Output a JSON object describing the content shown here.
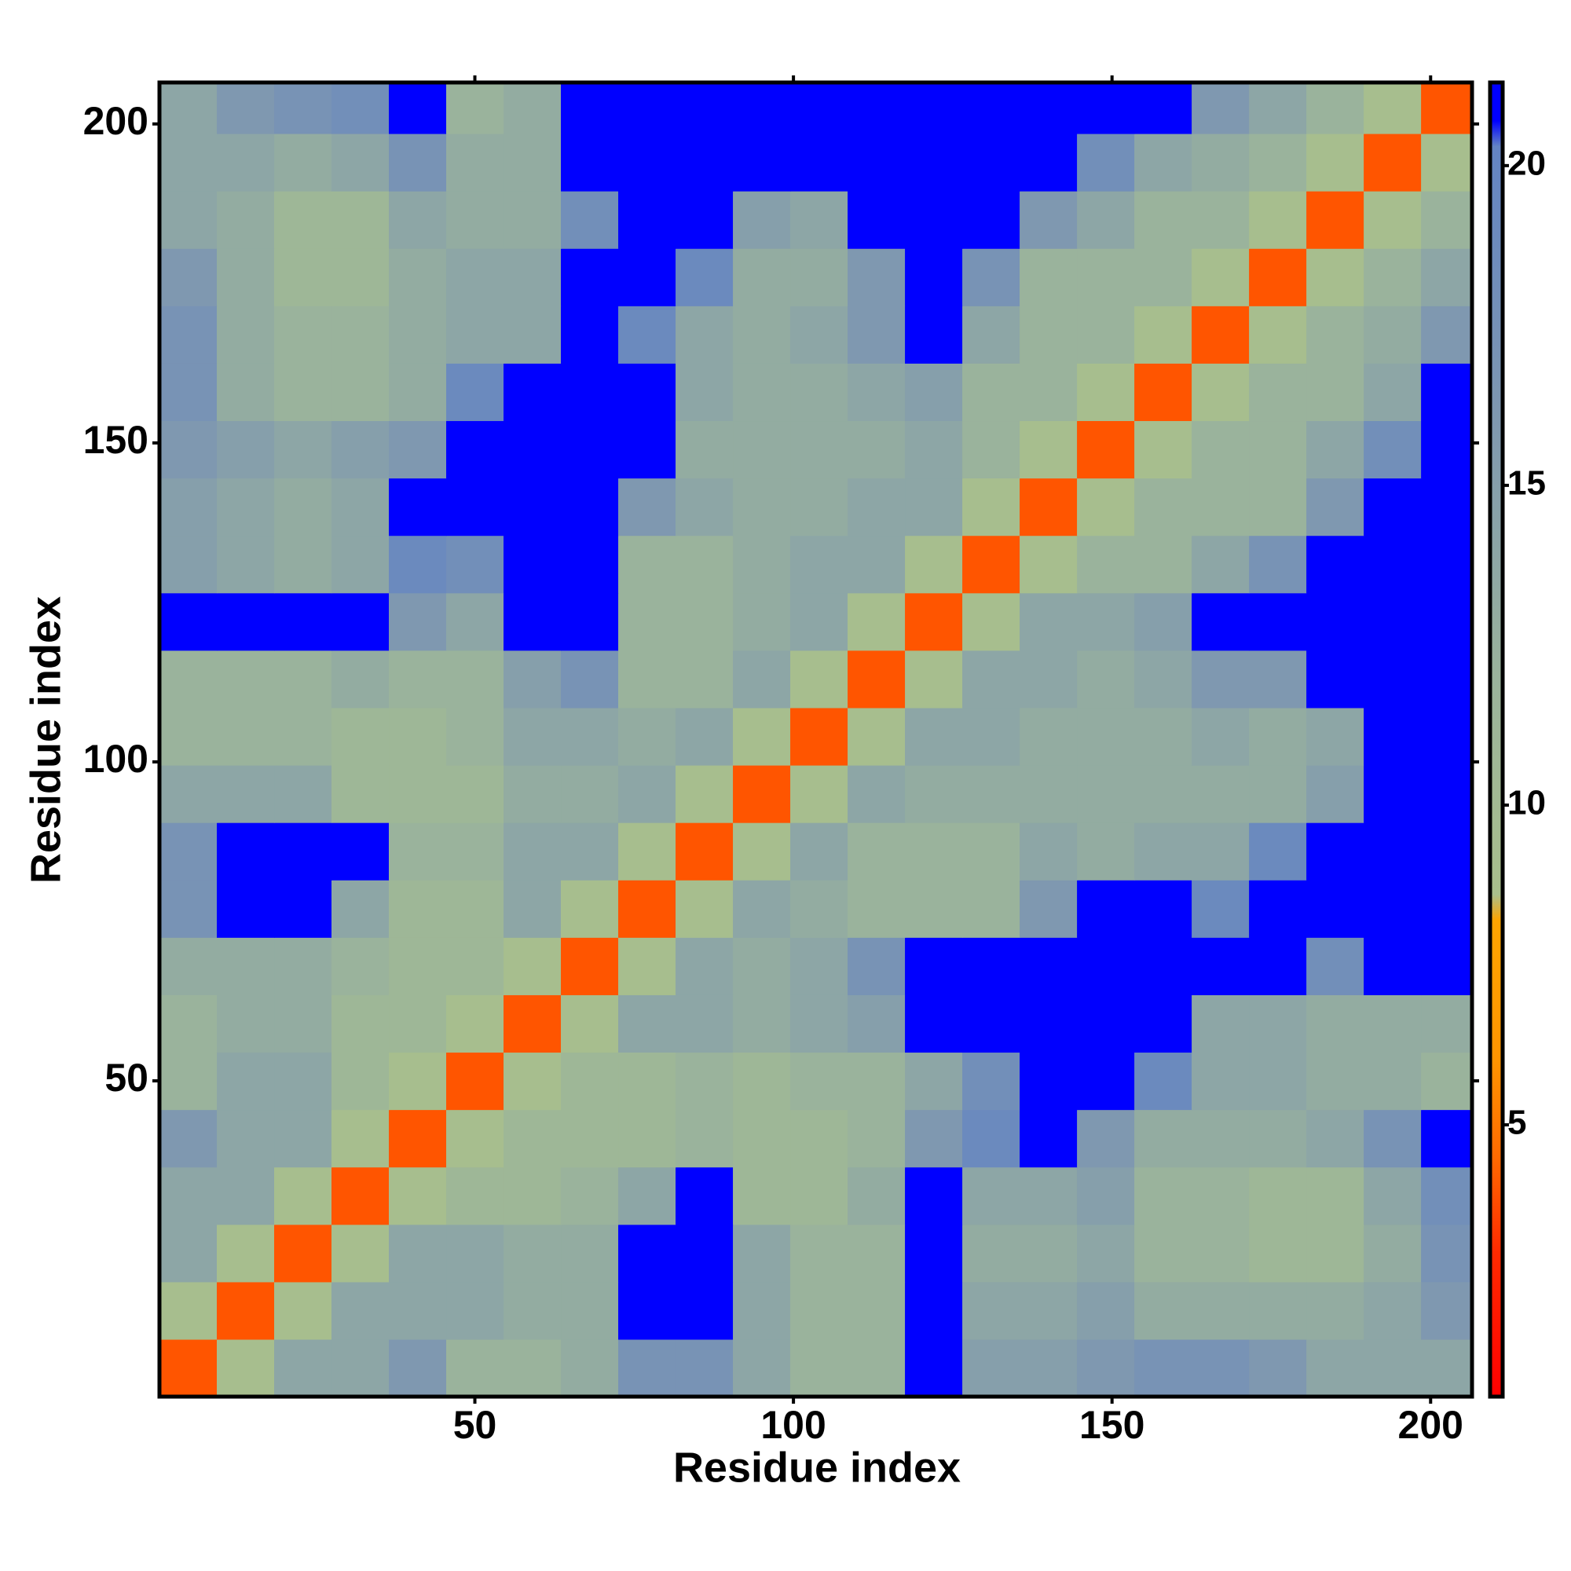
{
  "chart_data": {
    "type": "heatmap",
    "xlabel": "Residue index",
    "ylabel": "Residue index",
    "bins": [
      0.5,
      9.5,
      18.5,
      27.5,
      36.5,
      45.5,
      54.5,
      63.5,
      72.5,
      81.5,
      90.5,
      99.5,
      108.5,
      117.5,
      126.5,
      135.5,
      144.5,
      153.5,
      162.5,
      171.5,
      180.5,
      189.5,
      198.5,
      206.5
    ],
    "values": [
      [
        4,
        9,
        14,
        14,
        16,
        12,
        12,
        13,
        17,
        17,
        14,
        12,
        12,
        21,
        15,
        15,
        16,
        17,
        17,
        16,
        14,
        14,
        14
      ],
      [
        9,
        4,
        9,
        14,
        14,
        14,
        13,
        13,
        21,
        21,
        14,
        12,
        12,
        21,
        14,
        14,
        15,
        13,
        13,
        13,
        13,
        14,
        16
      ],
      [
        14,
        9,
        4,
        9,
        14,
        14,
        13,
        13,
        21,
        21,
        14,
        12,
        12,
        21,
        13,
        13,
        14,
        12,
        12,
        11,
        11,
        13,
        17
      ],
      [
        14,
        14,
        9,
        4,
        9,
        11,
        11,
        12,
        14,
        21,
        11,
        11,
        13,
        21,
        14,
        14,
        15,
        12,
        12,
        11,
        11,
        14,
        18
      ],
      [
        16,
        14,
        14,
        9,
        4,
        9,
        11,
        11,
        11,
        12,
        11,
        11,
        12,
        16,
        19,
        21,
        16,
        13,
        13,
        13,
        14,
        17,
        21
      ],
      [
        12,
        14,
        14,
        11,
        9,
        4,
        9,
        11,
        11,
        12,
        11,
        12,
        12,
        14,
        18,
        21,
        21,
        19,
        14,
        14,
        13,
        13,
        12
      ],
      [
        12,
        13,
        13,
        11,
        11,
        9,
        4,
        9,
        14,
        14,
        13,
        14,
        15,
        21,
        21,
        21,
        21,
        21,
        14,
        14,
        13,
        13,
        13
      ],
      [
        13,
        13,
        13,
        12,
        11,
        11,
        9,
        4,
        9,
        14,
        13,
        14,
        17,
        21,
        21,
        21,
        21,
        21,
        21,
        21,
        18,
        21,
        21
      ],
      [
        17,
        21,
        21,
        14,
        11,
        11,
        14,
        9,
        4,
        9,
        14,
        13,
        12,
        12,
        12,
        16,
        21,
        21,
        19,
        21,
        21,
        21,
        21
      ],
      [
        17,
        21,
        21,
        21,
        12,
        12,
        14,
        14,
        9,
        4,
        9,
        14,
        12,
        12,
        12,
        14,
        13,
        14,
        14,
        19,
        21,
        21,
        21
      ],
      [
        14,
        14,
        14,
        11,
        11,
        11,
        13,
        13,
        14,
        9,
        4,
        9,
        14,
        13,
        13,
        13,
        13,
        13,
        13,
        13,
        15,
        21,
        21
      ],
      [
        12,
        12,
        12,
        11,
        11,
        12,
        14,
        14,
        13,
        14,
        9,
        4,
        9,
        14,
        14,
        13,
        13,
        13,
        14,
        13,
        14,
        21,
        21
      ],
      [
        12,
        12,
        12,
        13,
        12,
        12,
        15,
        17,
        12,
        12,
        14,
        9,
        4,
        9,
        14,
        14,
        13,
        14,
        16,
        16,
        21,
        21,
        21
      ],
      [
        21,
        21,
        21,
        21,
        16,
        14,
        21,
        21,
        12,
        12,
        13,
        14,
        9,
        4,
        9,
        14,
        14,
        15,
        21,
        21,
        21,
        21,
        21
      ],
      [
        15,
        14,
        13,
        14,
        19,
        18,
        21,
        21,
        12,
        12,
        13,
        14,
        14,
        9,
        4,
        9,
        12,
        12,
        14,
        17,
        21,
        21,
        21
      ],
      [
        15,
        14,
        13,
        14,
        21,
        21,
        21,
        21,
        16,
        14,
        13,
        13,
        14,
        14,
        9,
        4,
        9,
        12,
        12,
        12,
        16,
        21,
        21
      ],
      [
        16,
        15,
        14,
        15,
        16,
        21,
        21,
        21,
        21,
        13,
        13,
        13,
        13,
        14,
        12,
        9,
        4,
        9,
        12,
        12,
        14,
        18,
        21
      ],
      [
        17,
        13,
        12,
        12,
        13,
        19,
        21,
        21,
        21,
        14,
        13,
        13,
        14,
        15,
        12,
        12,
        9,
        4,
        9,
        12,
        12,
        14,
        21
      ],
      [
        17,
        13,
        12,
        12,
        13,
        14,
        14,
        21,
        19,
        14,
        13,
        14,
        16,
        21,
        14,
        12,
        12,
        9,
        4,
        9,
        12,
        13,
        16
      ],
      [
        16,
        13,
        11,
        11,
        13,
        14,
        14,
        21,
        21,
        19,
        13,
        13,
        16,
        21,
        17,
        12,
        12,
        12,
        9,
        4,
        9,
        12,
        14
      ],
      [
        14,
        13,
        11,
        11,
        14,
        13,
        13,
        18,
        21,
        21,
        15,
        14,
        21,
        21,
        21,
        16,
        14,
        12,
        12,
        9,
        4,
        9,
        12
      ],
      [
        14,
        14,
        13,
        14,
        17,
        13,
        13,
        21,
        21,
        21,
        21,
        21,
        21,
        21,
        21,
        21,
        18,
        14,
        13,
        12,
        9,
        4,
        9
      ],
      [
        14,
        16,
        17,
        18,
        21,
        12,
        13,
        21,
        21,
        21,
        21,
        21,
        21,
        21,
        21,
        21,
        21,
        21,
        16,
        14,
        12,
        9,
        4
      ]
    ],
    "xlim": [
      0.5,
      206.5
    ],
    "ylim": [
      0.5,
      206.5
    ],
    "xticks": [
      50,
      100,
      150,
      200
    ],
    "yticks": [
      50,
      100,
      150,
      200
    ],
    "clim": [
      0.75,
      21.3
    ],
    "cticks": [
      5,
      10,
      15,
      20
    ],
    "colorscale": [
      [
        0.75,
        "#ff0000"
      ],
      [
        3,
        "#ff2a00"
      ],
      [
        4.5,
        "#ff6a00"
      ],
      [
        6,
        "#ff9400"
      ],
      [
        8.2,
        "#ffa500"
      ],
      [
        8.6,
        "#a9bf8c"
      ],
      [
        12,
        "#9ab39c"
      ],
      [
        16,
        "#7f98b0"
      ],
      [
        20.3,
        "#6384c4"
      ],
      [
        20.7,
        "#0000ff"
      ],
      [
        21.3,
        "#0000ff"
      ]
    ]
  }
}
